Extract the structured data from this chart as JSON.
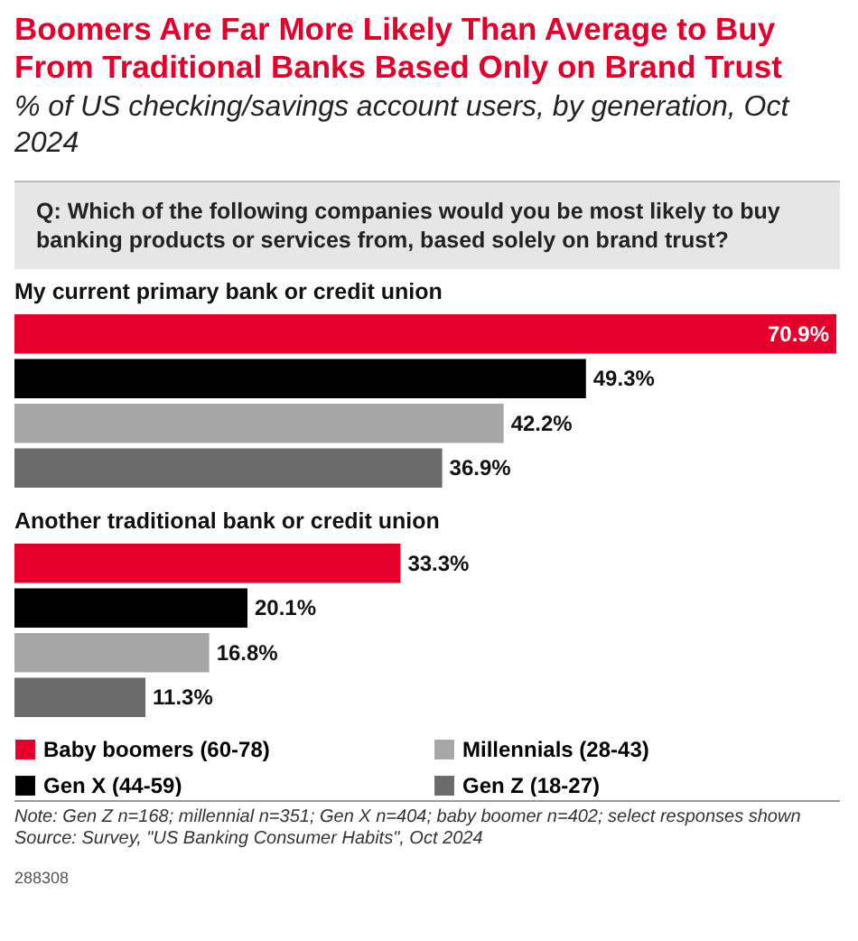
{
  "chart_data": {
    "type": "bar",
    "orientation": "horizontal",
    "title": "Boomers Are Far More Likely Than Average to Buy From Traditional Banks Based Only on Brand Trust",
    "subtitle": "% of US checking/savings account users, by generation, Oct 2024",
    "categories": [
      "My current primary bank or credit union",
      "Another traditional bank or credit union"
    ],
    "series": [
      {
        "name": "Baby boomers (60-78)",
        "color": "#e4002b",
        "values": [
          70.9,
          33.3
        ],
        "value_labels": [
          "70.9%",
          "33.3%"
        ]
      },
      {
        "name": "Gen X (44-59)",
        "color": "#000000",
        "values": [
          49.3,
          20.1
        ],
        "value_labels": [
          "49.3%",
          "20.1%"
        ]
      },
      {
        "name": "Millennials (28-43)",
        "color": "#a6a6a6",
        "values": [
          42.2,
          16.8
        ],
        "value_labels": [
          "42.2%",
          "16.8%"
        ]
      },
      {
        "name": "Gen Z (18-27)",
        "color": "#6b6b6b",
        "values": [
          36.9,
          11.3
        ],
        "value_labels": [
          "36.9%",
          "11.3%"
        ]
      }
    ],
    "legend": "bottom",
    "annotations": [
      "Q: Which of the following companies would you be most likely to buy banking products or services from, based solely on brand trust?",
      "Note: Gen Z n=168; millennial n=351; Gen X n=404; baby boomer n=402; select responses shown",
      "Source: Survey, \"US Banking Consumer Habits\", Oct 2024",
      "288308"
    ]
  }
}
